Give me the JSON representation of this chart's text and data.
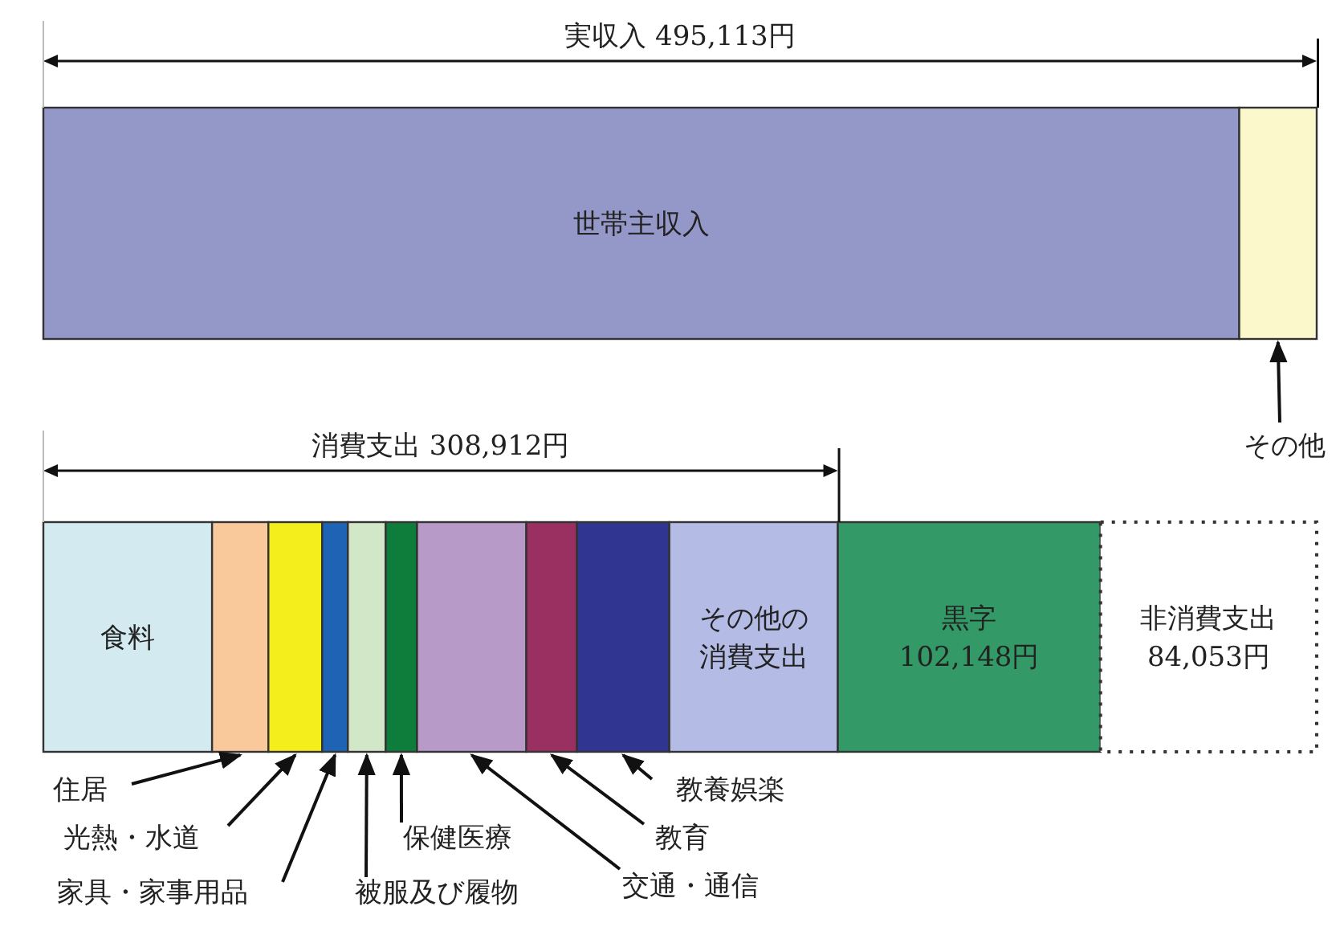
{
  "chart_data": {
    "type": "bar",
    "orientation": "horizontal",
    "stacked": true,
    "categories": [
      null,
      null
    ],
    "annotations": [
      "実収入 495,113円",
      "消費支出 308,912円"
    ],
    "series": [
      {
        "name": "世帯主収入",
        "color": "#9498c9",
        "values": [
          465000,
          null
        ]
      },
      {
        "name": "その他",
        "color": "#fbf8cc",
        "values": [
          30113,
          null
        ]
      },
      {
        "name": "食料",
        "color": "#d3eaf0",
        "values": [
          null,
          65600
        ]
      },
      {
        "name": "住居",
        "color": "#f9c89b",
        "values": [
          null,
          21900
        ]
      },
      {
        "name": "光熱・水道",
        "color": "#f4ee1c",
        "values": [
          null,
          20900
        ]
      },
      {
        "name": "家具・家事用品",
        "color": "#1f64b4",
        "values": [
          null,
          10000
        ]
      },
      {
        "name": "被服及び履物",
        "color": "#d2e6c8",
        "values": [
          null,
          14700
        ]
      },
      {
        "name": "保健医療",
        "color": "#0e7d3c",
        "values": [
          null,
          12200
        ]
      },
      {
        "name": "交通・通信",
        "color": "#b89ac8",
        "values": [
          null,
          42500
        ]
      },
      {
        "name": "教育",
        "color": "#9a2f62",
        "values": [
          null,
          19700
        ]
      },
      {
        "name": "教養娯楽",
        "color": "#2f3590",
        "values": [
          null,
          35900
        ]
      },
      {
        "name": "その他の消費支出",
        "color": "#b4bce6",
        "values": [
          null,
          65512
        ]
      },
      {
        "name": "黒字",
        "color": "#339966",
        "values": [
          null,
          102148
        ],
        "value_labels": [
          null,
          "102,148円"
        ]
      },
      {
        "name": "非消費支出",
        "color": "#ffffff",
        "line_style": "dotted",
        "values": [
          null,
          84053
        ],
        "value_labels": [
          null,
          "84,053円"
        ]
      }
    ]
  }
}
